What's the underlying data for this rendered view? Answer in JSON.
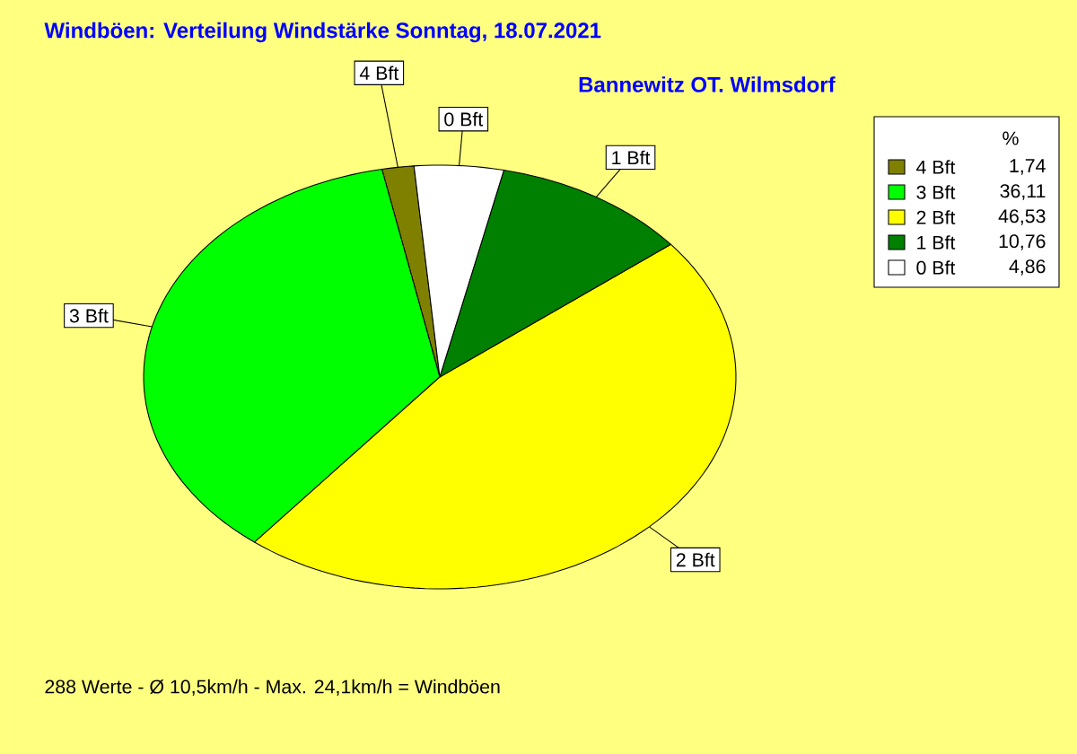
{
  "chart_data": {
    "type": "pie",
    "title": "Windböen: Verteilung Windstärke  Sonntag, 18.07.2021",
    "subtitle": "Bannewitz OT. Wilmsdorf",
    "categories": [
      "4 Bft",
      "3 Bft",
      "2 Bft",
      "1 Bft",
      "0 Bft"
    ],
    "values": [
      1.74,
      36.11,
      46.53,
      10.76,
      4.86
    ],
    "value_labels": [
      "1,74",
      "36,11",
      "46,53",
      "10,76",
      "4,86"
    ],
    "colors": [
      "#808000",
      "#00ff00",
      "#ffff00",
      "#008000",
      "#ffffff"
    ],
    "legend_title": "%",
    "legend": "top right",
    "annotations": [
      "288 Werte   -   Ø 10,5km/h   -   Max. 24,1km/h = Windböen"
    ]
  }
}
